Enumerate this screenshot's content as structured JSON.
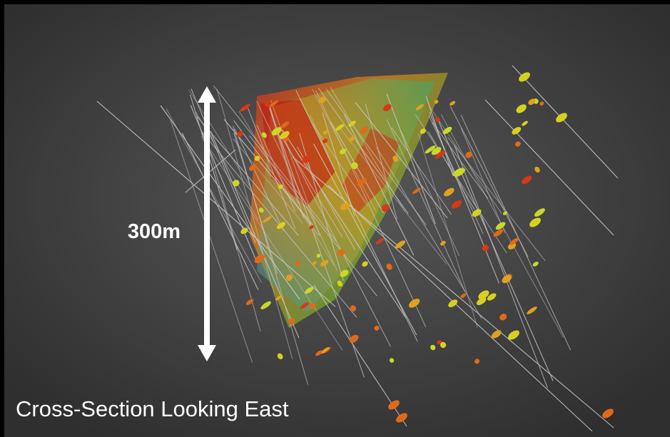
{
  "scale_label": "300m",
  "caption": "Cross-Section Looking East"
}
